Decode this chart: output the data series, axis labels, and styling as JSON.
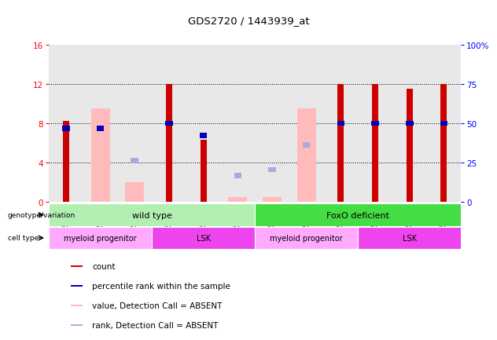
{
  "title": "GDS2720 / 1443939_at",
  "samples": [
    "GSM153717",
    "GSM153718",
    "GSM153719",
    "GSM153707",
    "GSM153709",
    "GSM153710",
    "GSM153720",
    "GSM153721",
    "GSM153722",
    "GSM153712",
    "GSM153714",
    "GSM153716"
  ],
  "red_bars": [
    8.2,
    null,
    null,
    12.0,
    6.3,
    null,
    null,
    null,
    12.0,
    12.0,
    11.5,
    12.0
  ],
  "pink_bars": [
    null,
    9.5,
    2.0,
    null,
    null,
    0.5,
    0.5,
    9.5,
    null,
    null,
    null,
    null
  ],
  "blue_squares": [
    7.5,
    7.5,
    null,
    8.0,
    6.8,
    null,
    null,
    null,
    8.0,
    8.0,
    8.0,
    8.0
  ],
  "light_blue_squares": [
    null,
    null,
    4.2,
    null,
    null,
    2.7,
    3.3,
    5.8,
    null,
    null,
    null,
    null
  ],
  "ylim_left": [
    0,
    16
  ],
  "ylim_right": [
    0,
    100
  ],
  "yticks_left": [
    0,
    4,
    8,
    12,
    16
  ],
  "yticks_right": [
    0,
    25,
    50,
    75,
    100
  ],
  "ytick_labels_right": [
    "0",
    "25",
    "50",
    "75",
    "100%"
  ],
  "genotype_wild_label": "wild type",
  "genotype_wild_span": [
    0,
    6
  ],
  "genotype_wild_color": "#b2f0b2",
  "genotype_foxo_label": "FoxO deficient",
  "genotype_foxo_span": [
    6,
    12
  ],
  "genotype_foxo_color": "#44dd44",
  "cell_blocks": [
    {
      "label": "myeloid progenitor",
      "span": [
        0,
        3
      ],
      "color": "#ffaaff"
    },
    {
      "label": "LSK",
      "span": [
        3,
        6
      ],
      "color": "#ee44ee"
    },
    {
      "label": "myeloid progenitor",
      "span": [
        6,
        9
      ],
      "color": "#ffaaff"
    },
    {
      "label": "LSK",
      "span": [
        9,
        12
      ],
      "color": "#ee44ee"
    }
  ],
  "red_color": "#cc0000",
  "pink_color": "#ffbbbb",
  "blue_color": "#0000bb",
  "light_blue_color": "#aaaadd",
  "col_bg_color": "#e8e8e8",
  "legend_items": [
    {
      "color": "#cc0000",
      "label": "count"
    },
    {
      "color": "#0000bb",
      "label": "percentile rank within the sample"
    },
    {
      "color": "#ffbbbb",
      "label": "value, Detection Call = ABSENT"
    },
    {
      "color": "#aaaadd",
      "label": "rank, Detection Call = ABSENT"
    }
  ]
}
